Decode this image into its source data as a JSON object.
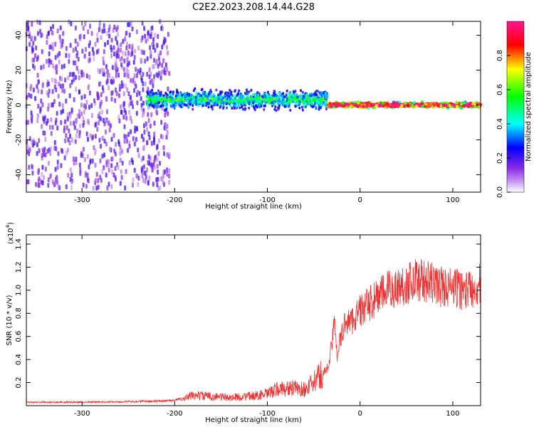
{
  "title": "C2E2.2023.208.14.44.G28",
  "chart_data": [
    {
      "type": "heatmap",
      "xlabel": "Height of straight line (km)",
      "ylabel": "Frequency (Hz)",
      "xlim": [
        -360,
        130
      ],
      "ylim": [
        -50,
        48
      ],
      "xticks": [
        -300,
        -200,
        -100,
        0,
        100
      ],
      "yticks": [
        -40,
        -20,
        0,
        20,
        40
      ],
      "xtick_labels": [
        "-300",
        "-200",
        "-100",
        "0",
        "100"
      ],
      "ytick_labels": [
        "-40",
        "-20",
        "0",
        "20",
        "40"
      ],
      "colorbar": {
        "label": "Normalized spectral amplitude",
        "range": [
          0,
          1
        ],
        "ticks": [
          0.0,
          0.2,
          0.4,
          0.6,
          0.8
        ],
        "tick_labels": [
          "0.0",
          "0.2",
          "0.4",
          "0.6",
          "0.8"
        ],
        "colors": [
          "#ffffff",
          "#8a2be2",
          "#0000ff",
          "#00ffff",
          "#00ff00",
          "#ffff00",
          "#ff0000",
          "#ff1493"
        ]
      },
      "regions": [
        {
          "x": [
            -360,
            -205
          ],
          "freq_spread": 48,
          "amplitude": 0.15
        },
        {
          "x": [
            -230,
            -35
          ],
          "freq_center": 3,
          "freq_spread": 7,
          "amplitude": 0.4
        },
        {
          "x": [
            -35,
            130
          ],
          "freq_center": 0,
          "freq_spread": 2,
          "amplitude": 0.85
        }
      ]
    },
    {
      "type": "line",
      "xlabel": "Height of straight line (km)",
      "ylabel": "SNR (10 * v/v)",
      "y_multiplier_label": "(x10",
      "y_multiplier_exp": "4",
      "y_multiplier_close": ")",
      "xlim": [
        -360,
        130
      ],
      "ylim": [
        0,
        1.48
      ],
      "xticks": [
        -300,
        -200,
        -100,
        0,
        100
      ],
      "yticks": [
        0.2,
        0.4,
        0.6,
        0.8,
        1.0,
        1.2,
        1.4
      ],
      "xtick_labels": [
        "-300",
        "-200",
        "-100",
        "0",
        "100"
      ],
      "ytick_labels": [
        "0.2",
        "0.4",
        "0.6",
        "0.8",
        "1.0",
        "1.2",
        "1.4"
      ],
      "color": "#f03030",
      "series": [
        {
          "x": [
            -360,
            -300,
            -250,
            -210,
            -190,
            -180,
            -160,
            -140,
            -120,
            -100,
            -90,
            -80,
            -70,
            -60,
            -50,
            -45,
            -40,
            -35,
            -30,
            -27,
            -25,
            -20,
            -15,
            -10,
            -5,
            0,
            10,
            20,
            30,
            40,
            50,
            60,
            70,
            80,
            90,
            100,
            110,
            120,
            130
          ],
          "values": [
            0.03,
            0.03,
            0.035,
            0.04,
            0.06,
            0.09,
            0.08,
            0.07,
            0.08,
            0.1,
            0.14,
            0.15,
            0.15,
            0.14,
            0.2,
            0.25,
            0.28,
            0.32,
            0.55,
            0.75,
            0.45,
            0.6,
            0.75,
            0.72,
            0.78,
            0.82,
            0.88,
            0.95,
            1.0,
            1.02,
            1.05,
            1.1,
            1.08,
            1.05,
            1.03,
            1.02,
            1.0,
            1.02,
            1.05
          ]
        }
      ]
    }
  ]
}
